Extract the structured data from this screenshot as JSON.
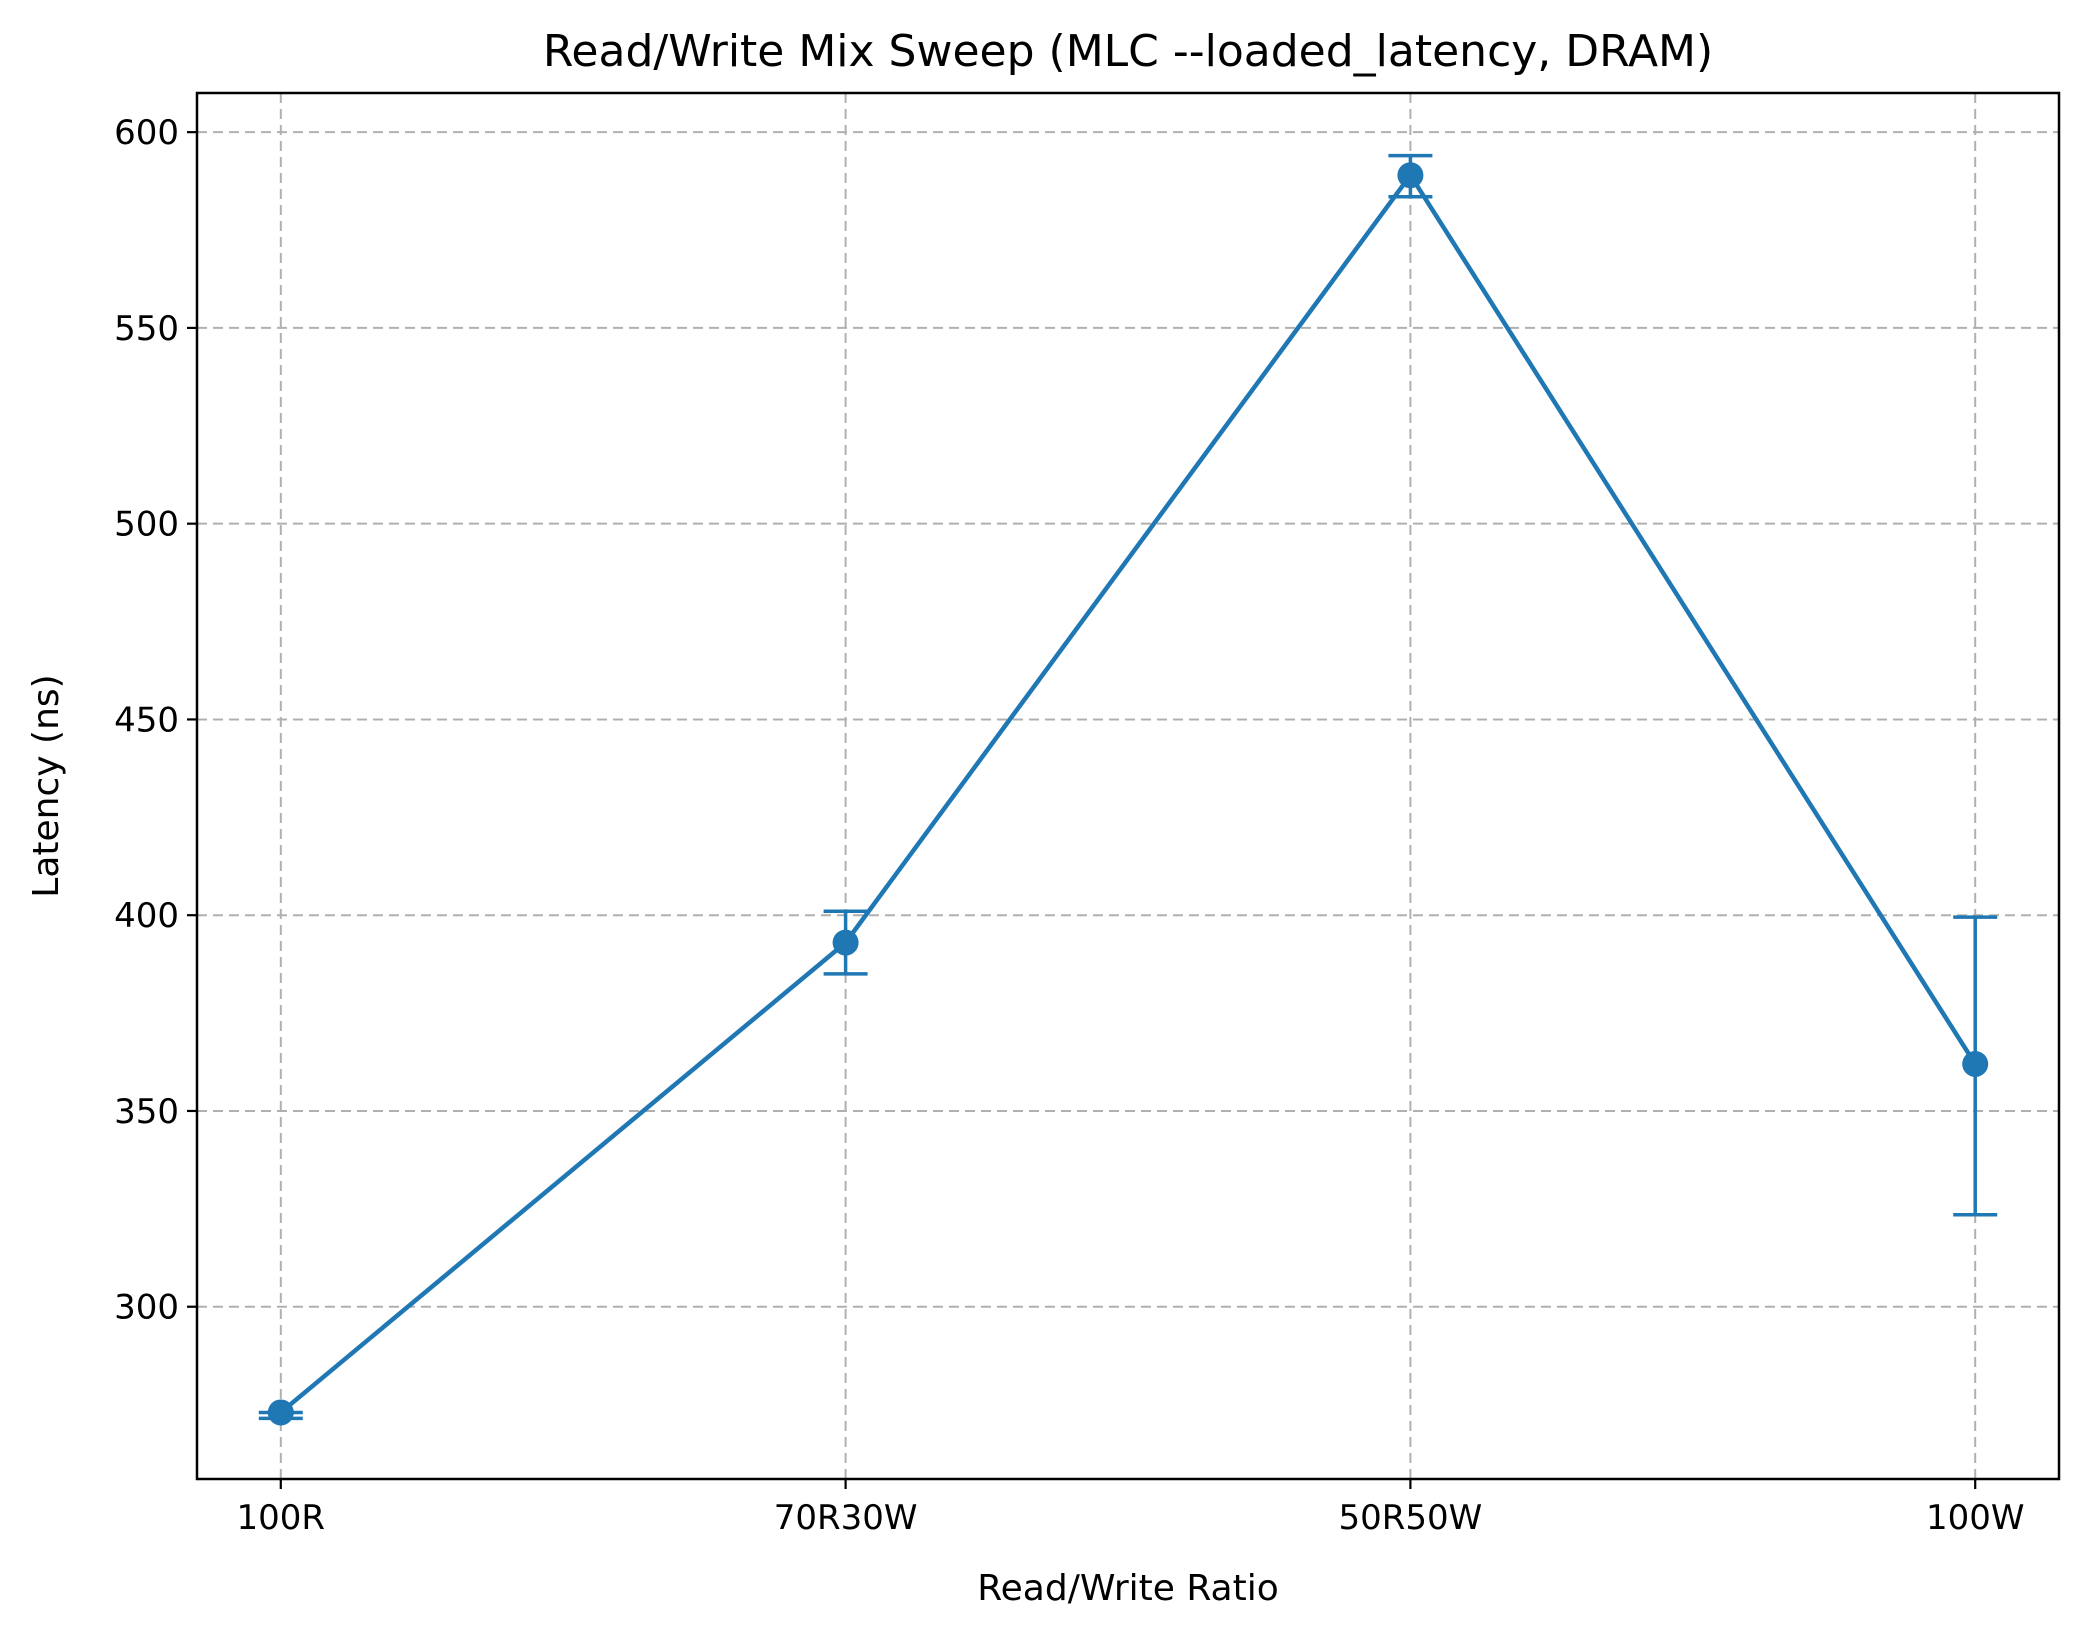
{
  "chart_data": {
    "type": "line",
    "title": "Read/Write Mix Sweep (MLC --loaded_latency, DRAM)",
    "xlabel": "Read/Write Ratio",
    "ylabel": "Latency (ns)",
    "categories": [
      "100R",
      "70R30W",
      "50R50W",
      "100W"
    ],
    "series": [
      {
        "values": [
          273,
          393,
          589,
          362
        ],
        "error_low": [
          271.5,
          385,
          583.5,
          323.5
        ],
        "error_high": [
          273,
          401,
          594,
          399.5
        ],
        "color": "#1f77b4"
      }
    ],
    "ylim": [
      256,
      610
    ],
    "yticks": [
      300,
      350,
      400,
      450,
      500,
      550,
      600
    ],
    "grid": true,
    "markers": "circle",
    "error_bars": true
  }
}
